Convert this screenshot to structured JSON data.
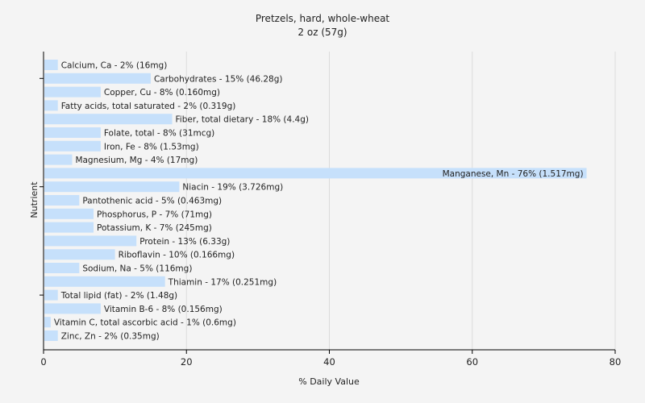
{
  "chart_data": {
    "type": "bar",
    "orientation": "horizontal",
    "title": "Pretzels, hard, whole-wheat",
    "subtitle": "2 oz (57g)",
    "xlabel": "% Daily Value",
    "ylabel": "Nutrient",
    "xlim": [
      0,
      80
    ],
    "xticks": [
      0,
      20,
      40,
      60,
      80
    ],
    "grid": true,
    "bar_color": "#c6e0fb",
    "categories": [
      "Calcium, Ca",
      "Carbohydrates",
      "Copper, Cu",
      "Fatty acids, total saturated",
      "Fiber, total dietary",
      "Folate, total",
      "Iron, Fe",
      "Magnesium, Mg",
      "Manganese, Mn",
      "Niacin",
      "Pantothenic acid",
      "Phosphorus, P",
      "Potassium, K",
      "Protein",
      "Riboflavin",
      "Sodium, Na",
      "Thiamin",
      "Total lipid (fat)",
      "Vitamin B-6",
      "Vitamin C, total ascorbic acid",
      "Zinc, Zn"
    ],
    "values": [
      2,
      15,
      8,
      2,
      18,
      8,
      8,
      4,
      76,
      19,
      5,
      7,
      7,
      13,
      10,
      5,
      17,
      2,
      8,
      1,
      2
    ],
    "labels": [
      "Calcium, Ca - 2% (16mg)",
      "Carbohydrates - 15% (46.28g)",
      "Copper, Cu - 8% (0.160mg)",
      "Fatty acids, total saturated - 2% (0.319g)",
      "Fiber, total dietary - 18% (4.4g)",
      "Folate, total - 8% (31mcg)",
      "Iron, Fe - 8% (1.53mg)",
      "Magnesium, Mg - 4% (17mg)",
      "Manganese, Mn - 76% (1.517mg)",
      "Niacin - 19% (3.726mg)",
      "Pantothenic acid - 5% (0.463mg)",
      "Phosphorus, P - 7% (71mg)",
      "Potassium, K - 7% (245mg)",
      "Protein - 13% (6.33g)",
      "Riboflavin - 10% (0.166mg)",
      "Sodium, Na - 5% (116mg)",
      "Thiamin - 17% (0.251mg)",
      "Total lipid (fat) - 2% (1.48g)",
      "Vitamin B-6 - 8% (0.156mg)",
      "Vitamin C, total ascorbic acid - 1% (0.6mg)",
      "Zinc, Zn - 2% (0.35mg)"
    ]
  }
}
